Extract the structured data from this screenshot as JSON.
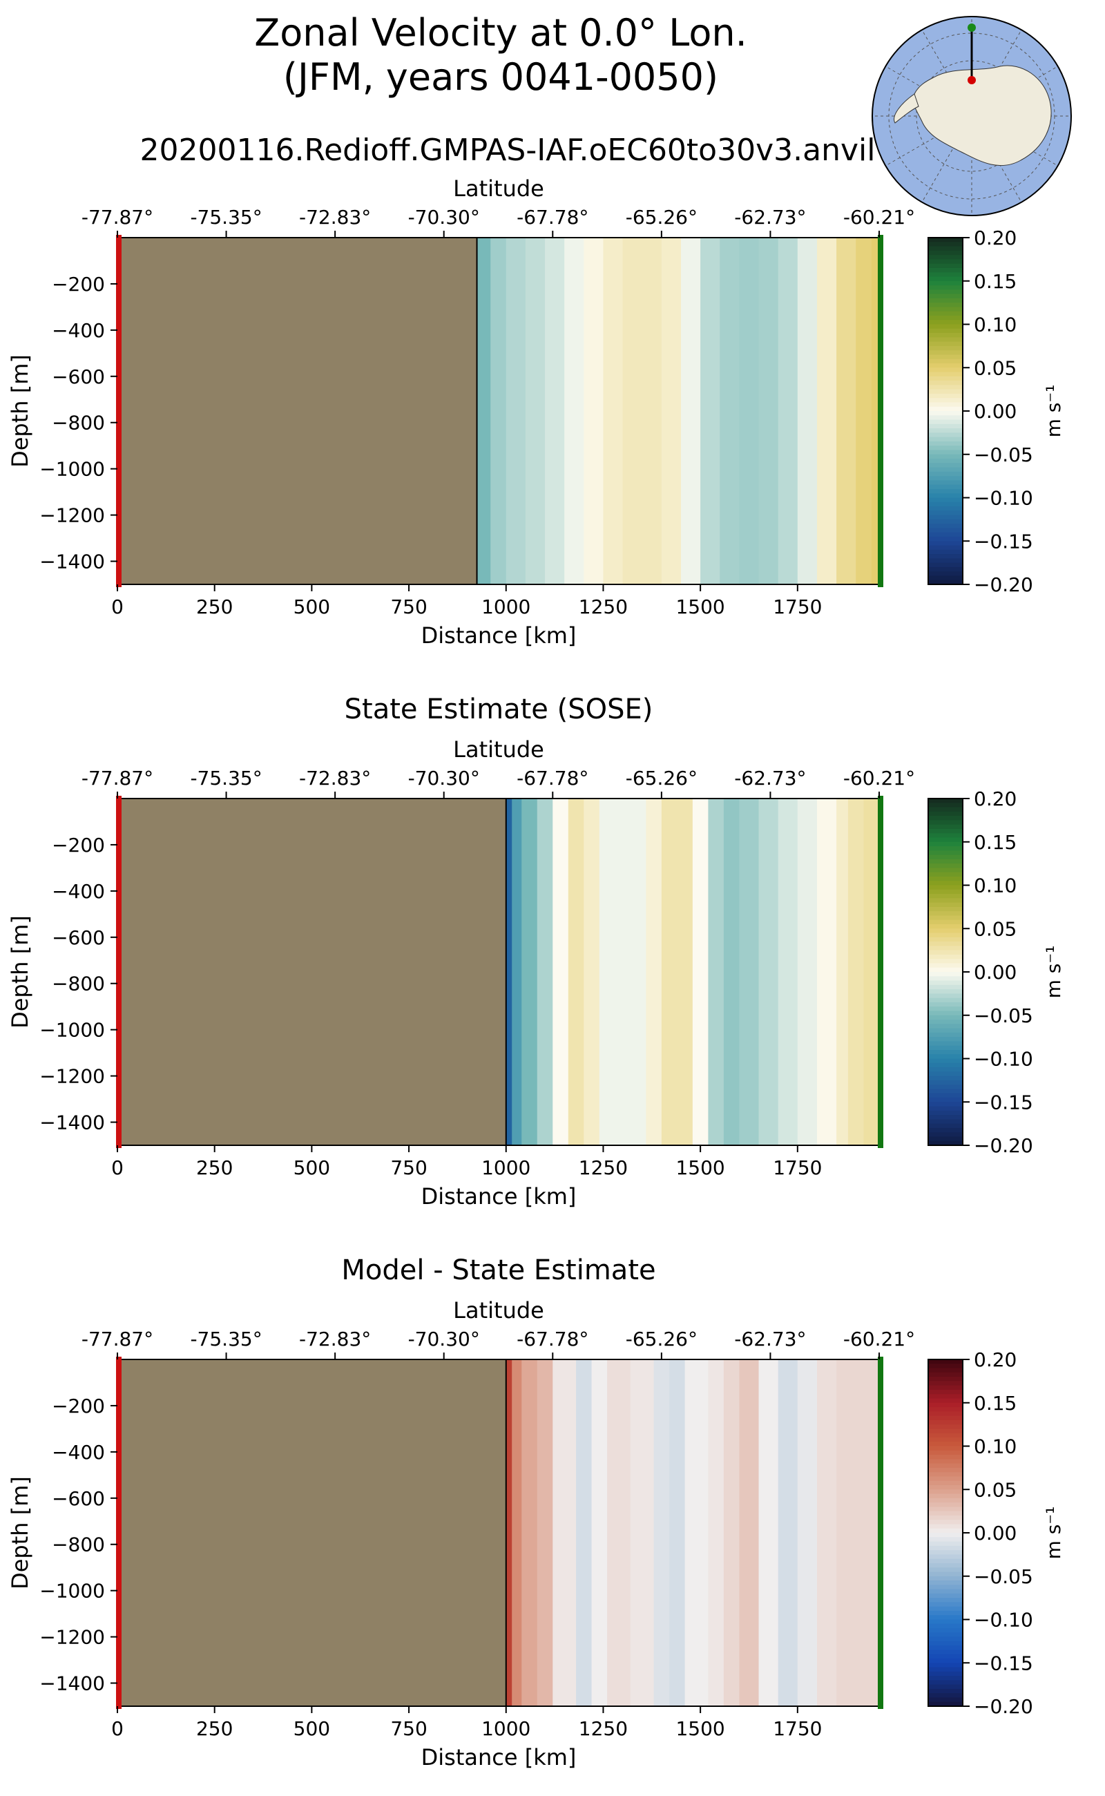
{
  "figure": {
    "title_line1": "Zonal Velocity at 0.0° Lon.",
    "title_line2": "(JFM, years 0041-0050)",
    "subtitle": "20200116.Redioff.GMPAS-IAF.oEC60to30v3.anvil"
  },
  "inset_map": {
    "description_name": "antarctica-polar-map",
    "colors": {
      "ocean": "#98b4e3",
      "land": "#efebdc",
      "grid": "#555555"
    },
    "transect_start_marker_color": "#d40000",
    "transect_end_marker_color": "#1a8a1a"
  },
  "colors": {
    "land_mask": "#8f8165",
    "start_marker": "#cc1111",
    "end_marker": "#117711"
  },
  "chart_data": [
    {
      "type": "heatmap",
      "title": "",
      "xlabel": "Distance [km]",
      "ylabel": "Depth [m]",
      "top_xlabel": "Latitude",
      "xlim": [
        0,
        1960
      ],
      "ylim": [
        -1500,
        0
      ],
      "x_ticks": [
        0,
        250,
        500,
        750,
        1000,
        1250,
        1500,
        1750
      ],
      "y_ticks": [
        -200,
        -400,
        -600,
        -800,
        -1000,
        -1200,
        -1400
      ],
      "y_tick_labels": [
        "−200",
        "−400",
        "−600",
        "−800",
        "−1000",
        "−1200",
        "−1400"
      ],
      "lat_ticks": [
        "-77.87°",
        "-75.35°",
        "-72.83°",
        "-70.30°",
        "-67.78°",
        "-65.26°",
        "-62.73°",
        "-60.21°"
      ],
      "land_extent_km": 925,
      "colorbar": {
        "label": "m s⁻¹",
        "range": [
          -0.2,
          0.2
        ],
        "ticks": [
          "0.20",
          "0.15",
          "0.10",
          "0.05",
          "0.00",
          "−0.05",
          "−0.10",
          "−0.15",
          "−0.20"
        ],
        "colormap": "balance-velocity"
      },
      "zonal_velocity_profile": {
        "distance_km": [
          925,
          960,
          1000,
          1050,
          1100,
          1150,
          1200,
          1250,
          1300,
          1350,
          1400,
          1450,
          1500,
          1550,
          1600,
          1650,
          1700,
          1750,
          1800,
          1850,
          1900,
          1940,
          1960
        ],
        "velocity_m_s": [
          -0.06,
          -0.04,
          -0.03,
          -0.025,
          -0.02,
          -0.01,
          0.0,
          0.01,
          0.02,
          0.02,
          0.02,
          0.01,
          -0.02,
          -0.03,
          -0.035,
          -0.035,
          -0.03,
          -0.02,
          0.0,
          0.03,
          0.04,
          0.05,
          0.05
        ]
      }
    },
    {
      "type": "heatmap",
      "title": "State Estimate (SOSE)",
      "xlabel": "Distance [km]",
      "ylabel": "Depth [m]",
      "top_xlabel": "Latitude",
      "xlim": [
        0,
        1960
      ],
      "ylim": [
        -1500,
        0
      ],
      "x_ticks": [
        0,
        250,
        500,
        750,
        1000,
        1250,
        1500,
        1750
      ],
      "y_ticks": [
        -200,
        -400,
        -600,
        -800,
        -1000,
        -1200,
        -1400
      ],
      "y_tick_labels": [
        "−200",
        "−400",
        "−600",
        "−800",
        "−1000",
        "−1200",
        "−1400"
      ],
      "lat_ticks": [
        "-77.87°",
        "-75.35°",
        "-72.83°",
        "-70.30°",
        "-67.78°",
        "-65.26°",
        "-62.73°",
        "-60.21°"
      ],
      "land_extent_km": 1000,
      "colorbar": {
        "label": "m s⁻¹",
        "range": [
          -0.2,
          0.2
        ],
        "ticks": [
          "0.20",
          "0.15",
          "0.10",
          "0.05",
          "0.00",
          "−0.05",
          "−0.10",
          "−0.15",
          "−0.20"
        ],
        "colormap": "balance-velocity"
      },
      "zonal_velocity_profile": {
        "distance_km": [
          1000,
          1015,
          1040,
          1080,
          1120,
          1160,
          1200,
          1240,
          1300,
          1360,
          1400,
          1440,
          1480,
          1520,
          1560,
          1600,
          1650,
          1700,
          1750,
          1800,
          1850,
          1880,
          1920,
          1960
        ],
        "velocity_m_s": [
          -0.16,
          -0.09,
          -0.06,
          -0.04,
          -0.02,
          0.02,
          0.03,
          0.0,
          -0.01,
          0.0,
          0.02,
          0.03,
          0.02,
          -0.02,
          -0.04,
          -0.04,
          -0.03,
          -0.02,
          -0.01,
          -0.005,
          0.01,
          0.02,
          0.03,
          0.03
        ]
      }
    },
    {
      "type": "heatmap",
      "title": "Model - State Estimate",
      "xlabel": "Distance [km]",
      "ylabel": "Depth [m]",
      "top_xlabel": "Latitude",
      "xlim": [
        0,
        1960
      ],
      "ylim": [
        -1500,
        0
      ],
      "x_ticks": [
        0,
        250,
        500,
        750,
        1000,
        1250,
        1500,
        1750
      ],
      "y_ticks": [
        -200,
        -400,
        -600,
        -800,
        -1000,
        -1200,
        -1400
      ],
      "y_tick_labels": [
        "−200",
        "−400",
        "−600",
        "−800",
        "−1000",
        "−1200",
        "−1400"
      ],
      "lat_ticks": [
        "-77.87°",
        "-75.35°",
        "-72.83°",
        "-70.30°",
        "-67.78°",
        "-65.26°",
        "-62.73°",
        "-60.21°"
      ],
      "land_extent_km": 1000,
      "colorbar": {
        "label": "m s⁻¹",
        "range": [
          -0.2,
          0.2
        ],
        "ticks": [
          "0.20",
          "0.15",
          "0.10",
          "0.05",
          "0.00",
          "−0.05",
          "−0.10",
          "−0.15",
          "−0.20"
        ],
        "colormap": "balance-diff"
      },
      "zonal_velocity_profile": {
        "distance_km": [
          1000,
          1015,
          1040,
          1080,
          1120,
          1180,
          1220,
          1260,
          1320,
          1380,
          1420,
          1460,
          1520,
          1560,
          1600,
          1650,
          1700,
          1750,
          1800,
          1850,
          1900,
          1960
        ],
        "velocity_m_s": [
          0.16,
          0.08,
          0.05,
          0.04,
          0.03,
          -0.02,
          -0.01,
          0.01,
          0.01,
          0.0,
          -0.02,
          -0.01,
          0.01,
          0.0,
          0.03,
          0.02,
          -0.02,
          -0.01,
          0.0,
          0.02,
          0.01,
          0.02
        ]
      }
    }
  ]
}
